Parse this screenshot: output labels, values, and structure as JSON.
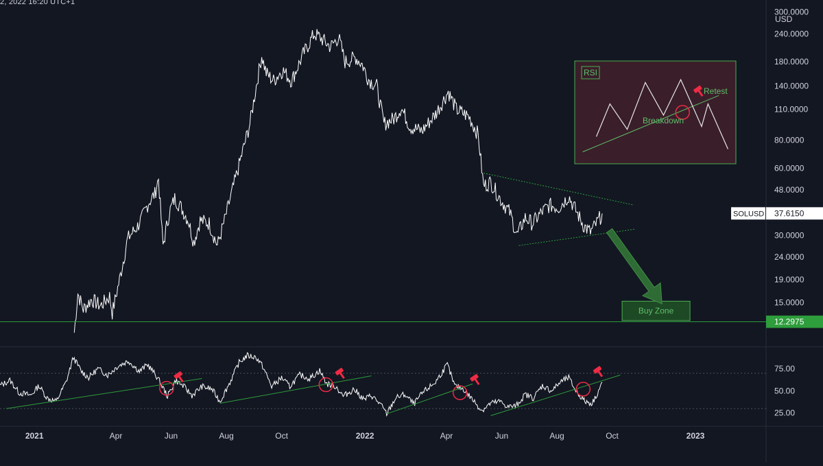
{
  "header": {
    "timestamp": "2, 2022 16:20 UTC+1"
  },
  "colors": {
    "background": "#131722",
    "price": "#ffffff",
    "axis_text": "#d1d4dc",
    "separator": "#2a2e39",
    "trend_green": "#2e9e3c",
    "buy_zone_fill": "#1d4a24",
    "buy_zone_border": "#4caf50",
    "rsi_box_fill": "#3a1f2a",
    "rsi_box_border": "#4caf50",
    "retest_red": "#ef2a44",
    "label_green": "#5fbf6a"
  },
  "chart_data": [
    {
      "type": "line",
      "panel": "price",
      "symbol": "SOLUSD",
      "last_price": "37.6150",
      "currency_label": "USD",
      "y_scale": "log",
      "ylim": [
        9.5,
        340
      ],
      "y_tick_labels": [
        "300.0000",
        "240.0000",
        "180.0000",
        "140.0000",
        "110.0000",
        "80.0000",
        "60.0000",
        "48.0000",
        "30.0000",
        "24.0000",
        "19.0000",
        "15.0000"
      ],
      "y_tick_values": [
        300,
        240,
        180,
        140,
        110,
        80,
        60,
        48,
        30,
        24,
        19,
        15
      ],
      "support_level": {
        "value": 12.2975,
        "label": "12.2975"
      },
      "x_tick_labels": [
        "2021",
        "Apr",
        "Jun",
        "Aug",
        "Oct",
        "2022",
        "Apr",
        "Jun",
        "Aug",
        "Oct",
        "2023"
      ],
      "x_tick_dates": [
        "2021-01-01",
        "2021-04-01",
        "2021-06-01",
        "2021-08-01",
        "2021-10-01",
        "2022-01-01",
        "2022-04-01",
        "2022-06-01",
        "2022-08-01",
        "2022-10-01",
        "2023-01-01"
      ],
      "xlim": [
        "2020-11-24",
        "2023-03-20"
      ],
      "series": [
        {
          "points": [
            [
              "2021-02-14",
              11
            ],
            [
              "2021-02-18",
              16.5
            ],
            [
              "2021-02-24",
              14
            ],
            [
              "2021-03-05",
              15.5
            ],
            [
              "2021-03-15",
              14.5
            ],
            [
              "2021-03-25",
              16
            ],
            [
              "2021-03-28",
              13.5
            ],
            [
              "2021-04-05",
              19
            ],
            [
              "2021-04-14",
              29
            ],
            [
              "2021-04-25",
              33
            ],
            [
              "2021-04-30",
              36
            ],
            [
              "2021-05-07",
              42
            ],
            [
              "2021-05-14",
              46
            ],
            [
              "2021-05-18",
              54
            ],
            [
              "2021-05-23",
              27
            ],
            [
              "2021-05-30",
              38
            ],
            [
              "2021-06-05",
              44
            ],
            [
              "2021-06-12",
              40
            ],
            [
              "2021-06-20",
              35
            ],
            [
              "2021-06-26",
              28
            ],
            [
              "2021-07-03",
              35
            ],
            [
              "2021-07-13",
              34
            ],
            [
              "2021-07-22",
              27
            ],
            [
              "2021-07-30",
              35
            ],
            [
              "2021-08-09",
              50
            ],
            [
              "2021-08-20",
              74
            ],
            [
              "2021-08-27",
              95
            ],
            [
              "2021-09-03",
              140
            ],
            [
              "2021-09-09",
              192
            ],
            [
              "2021-09-14",
              160
            ],
            [
              "2021-09-22",
              148
            ],
            [
              "2021-10-02",
              165
            ],
            [
              "2021-10-12",
              148
            ],
            [
              "2021-10-25",
              195
            ],
            [
              "2021-11-06",
              240
            ],
            [
              "2021-11-12",
              232
            ],
            [
              "2021-11-24",
              210
            ],
            [
              "2021-12-03",
              232
            ],
            [
              "2021-12-10",
              180
            ],
            [
              "2021-12-22",
              188
            ],
            [
              "2021-12-29",
              175
            ],
            [
              "2022-01-05",
              150
            ],
            [
              "2022-01-14",
              140
            ],
            [
              "2022-01-22",
              95
            ],
            [
              "2022-02-02",
              100
            ],
            [
              "2022-02-10",
              112
            ],
            [
              "2022-02-20",
              92
            ],
            [
              "2022-03-05",
              88
            ],
            [
              "2022-03-20",
              105
            ],
            [
              "2022-04-03",
              132
            ],
            [
              "2022-04-12",
              110
            ],
            [
              "2022-04-26",
              102
            ],
            [
              "2022-05-06",
              85
            ],
            [
              "2022-05-12",
              50
            ],
            [
              "2022-05-20",
              52
            ],
            [
              "2022-05-30",
              44
            ],
            [
              "2022-06-10",
              38
            ],
            [
              "2022-06-18",
              30
            ],
            [
              "2022-06-27",
              36
            ],
            [
              "2022-07-05",
              34
            ],
            [
              "2022-07-15",
              38
            ],
            [
              "2022-07-24",
              41
            ],
            [
              "2022-08-03",
              40
            ],
            [
              "2022-08-14",
              45
            ],
            [
              "2022-08-23",
              38
            ],
            [
              "2022-08-31",
              33
            ],
            [
              "2022-09-07",
              31
            ],
            [
              "2022-09-14",
              34
            ],
            [
              "2022-09-20",
              37.6
            ]
          ]
        }
      ],
      "triangle": {
        "upper": [
          [
            "2022-05-12",
            57
          ],
          [
            "2022-10-25",
            41
          ]
        ],
        "lower": [
          [
            "2022-06-20",
            27
          ],
          [
            "2022-10-27",
            32
          ]
        ]
      },
      "buy_zone": {
        "label": "Buy Zone",
        "from": "2022-10-12",
        "to": "2022-12-26",
        "low": 12.45,
        "high": 15.2
      },
      "arrow": {
        "from": [
          "2022-09-28",
          31.5
        ],
        "to": [
          "2022-11-25",
          14.8
        ]
      }
    },
    {
      "type": "line",
      "panel": "rsi",
      "ylim": [
        10,
        100
      ],
      "y_tick_labels": [
        "75.00",
        "50.00",
        "25.00"
      ],
      "y_tick_values": [
        75,
        50,
        25
      ],
      "guide_levels": [
        70,
        30
      ],
      "series": [
        {
          "points": [
            [
              "2020-11-24",
              56
            ],
            [
              "2020-12-05",
              62
            ],
            [
              "2020-12-15",
              48
            ],
            [
              "2020-12-28",
              45
            ],
            [
              "2021-01-06",
              56
            ],
            [
              "2021-01-15",
              42
            ],
            [
              "2021-01-25",
              38
            ],
            [
              "2021-02-05",
              60
            ],
            [
              "2021-02-13",
              88
            ],
            [
              "2021-02-22",
              72
            ],
            [
              "2021-03-02",
              65
            ],
            [
              "2021-03-12",
              75
            ],
            [
              "2021-03-23",
              68
            ],
            [
              "2021-04-03",
              78
            ],
            [
              "2021-04-15",
              84
            ],
            [
              "2021-04-27",
              72
            ],
            [
              "2021-05-06",
              80
            ],
            [
              "2021-05-17",
              65
            ],
            [
              "2021-05-28",
              44
            ],
            [
              "2021-06-06",
              62
            ],
            [
              "2021-06-15",
              55
            ],
            [
              "2021-06-24",
              45
            ],
            [
              "2021-07-05",
              55
            ],
            [
              "2021-07-16",
              52
            ],
            [
              "2021-07-25",
              38
            ],
            [
              "2021-08-05",
              60
            ],
            [
              "2021-08-15",
              82
            ],
            [
              "2021-08-24",
              90
            ],
            [
              "2021-09-03",
              88
            ],
            [
              "2021-09-10",
              78
            ],
            [
              "2021-09-20",
              55
            ],
            [
              "2021-10-01",
              65
            ],
            [
              "2021-10-10",
              55
            ],
            [
              "2021-10-21",
              68
            ],
            [
              "2021-11-01",
              64
            ],
            [
              "2021-11-12",
              73
            ],
            [
              "2021-11-20",
              58
            ],
            [
              "2021-11-30",
              55
            ],
            [
              "2021-12-08",
              44
            ],
            [
              "2021-12-20",
              52
            ],
            [
              "2021-12-31",
              40
            ],
            [
              "2022-01-08",
              45
            ],
            [
              "2022-01-18",
              35
            ],
            [
              "2022-01-25",
              24
            ],
            [
              "2022-02-04",
              42
            ],
            [
              "2022-02-14",
              46
            ],
            [
              "2022-02-24",
              35
            ],
            [
              "2022-03-06",
              48
            ],
            [
              "2022-03-20",
              60
            ],
            [
              "2022-04-02",
              80
            ],
            [
              "2022-04-10",
              56
            ],
            [
              "2022-04-20",
              52
            ],
            [
              "2022-04-30",
              40
            ],
            [
              "2022-05-10",
              28
            ],
            [
              "2022-05-20",
              36
            ],
            [
              "2022-05-30",
              38
            ],
            [
              "2022-06-08",
              32
            ],
            [
              "2022-06-17",
              33
            ],
            [
              "2022-06-27",
              46
            ],
            [
              "2022-07-06",
              42
            ],
            [
              "2022-07-16",
              56
            ],
            [
              "2022-07-26",
              50
            ],
            [
              "2022-08-05",
              60
            ],
            [
              "2022-08-14",
              65
            ],
            [
              "2022-08-22",
              50
            ],
            [
              "2022-09-01",
              38
            ],
            [
              "2022-09-09",
              36
            ],
            [
              "2022-09-15",
              48
            ],
            [
              "2022-09-20",
              60
            ]
          ]
        }
      ],
      "trendlines": [
        [
          [
            "2020-12-01",
            30
          ],
          [
            "2021-07-05",
            64
          ]
        ],
        [
          [
            "2021-07-25",
            36
          ],
          [
            "2022-01-08",
            67
          ]
        ],
        [
          [
            "2022-01-25",
            24
          ],
          [
            "2022-04-30",
            58
          ]
        ],
        [
          [
            "2022-05-20",
            22
          ],
          [
            "2022-10-10",
            68
          ]
        ]
      ],
      "retest_circles": [
        [
          "2021-05-27",
          53
        ],
        [
          "2021-11-19",
          57
        ],
        [
          "2022-04-16",
          48
        ],
        [
          "2022-08-30",
          52
        ]
      ],
      "hammer_markers": [
        [
          "2021-06-10",
          66
        ],
        [
          "2021-12-05",
          70
        ],
        [
          "2022-05-03",
          63
        ],
        [
          "2022-09-16",
          72
        ]
      ]
    },
    {
      "type": "line",
      "panel": "inset",
      "title": "RSI",
      "labels": {
        "breakdown": "Breakdown",
        "retest": "Retest"
      },
      "series": [
        {
          "points": [
            [
              0,
              22
            ],
            [
              15,
              80
            ],
            [
              34,
              35
            ],
            [
              54,
              118
            ],
            [
              74,
              60
            ],
            [
              93,
              123
            ],
            [
              116,
              40
            ],
            [
              123,
              80
            ],
            [
              145,
              0
            ]
          ]
        }
      ],
      "trendline": [
        [
          -15,
          -5
        ],
        [
          135,
          95
        ]
      ],
      "circle_at": [
        95,
        65
      ],
      "hammer_at": [
        113,
        103
      ],
      "xlim": [
        -20,
        150
      ],
      "ylim": [
        -20,
        150
      ]
    }
  ]
}
